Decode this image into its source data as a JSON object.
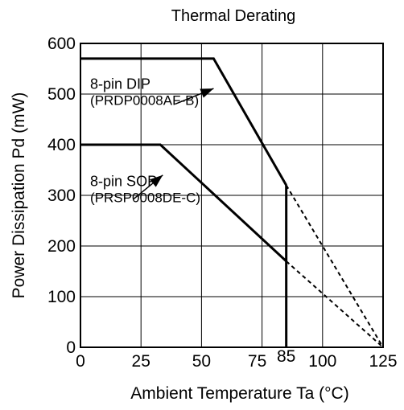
{
  "chart_data": {
    "type": "line",
    "title": "Thermal Derating",
    "xlabel": "Ambient Temperature   Ta   (°C)",
    "ylabel": "Power Dissipation   Pd   (mW)",
    "xlim": [
      0,
      125
    ],
    "ylim": [
      0,
      600
    ],
    "xticks": [
      0,
      25,
      50,
      75,
      100,
      125
    ],
    "xtick_labels": [
      "0",
      "25",
      "50",
      "75",
      "100",
      "125"
    ],
    "extra_xtick": {
      "value": 85,
      "label": "85"
    },
    "yticks": [
      0,
      100,
      200,
      300,
      400,
      500,
      600
    ],
    "ytick_labels": [
      "0",
      "100",
      "200",
      "300",
      "400",
      "500",
      "600"
    ],
    "grid": true,
    "series": [
      {
        "name": "8-pin DIP",
        "package": "(PRDP0008AF-B)",
        "solid": [
          [
            0,
            570
          ],
          [
            55,
            570
          ],
          [
            85,
            320
          ]
        ],
        "dashed": [
          [
            85,
            320
          ],
          [
            125,
            0
          ]
        ]
      },
      {
        "name": "8-pin SOP",
        "package": "(PRSP0008DE-C)",
        "solid": [
          [
            0,
            400
          ],
          [
            33,
            400
          ],
          [
            85,
            170
          ]
        ],
        "dashed": [
          [
            85,
            170
          ],
          [
            125,
            0
          ]
        ]
      }
    ],
    "cutoff_line": {
      "x": 85,
      "y_from": 0,
      "y_to": 320
    },
    "annotations": [
      {
        "series": 0,
        "text_x": 4,
        "text_y": 510,
        "arrow_from": [
          39,
          480
        ],
        "arrow_to": [
          55,
          511
        ]
      },
      {
        "series": 1,
        "text_x": 4,
        "text_y": 318,
        "arrow_from": [
          22,
          293
        ],
        "arrow_to": [
          34,
          340
        ]
      }
    ]
  }
}
